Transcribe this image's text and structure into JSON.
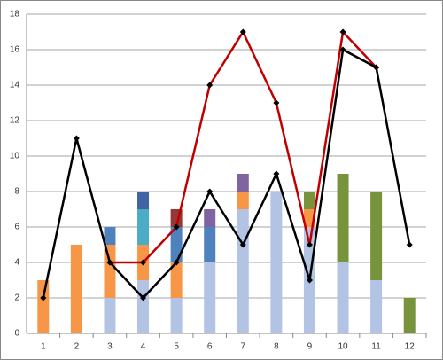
{
  "chart_data": {
    "type": "bar",
    "stacked": true,
    "categories": [
      "1",
      "2",
      "3",
      "4",
      "5",
      "6",
      "7",
      "8",
      "9",
      "10",
      "11",
      "12"
    ],
    "series": [
      {
        "type": "bar",
        "color": "#b3c3e3",
        "values": [
          null,
          null,
          2,
          3,
          2,
          4,
          7,
          8,
          6,
          4,
          3,
          null
        ]
      },
      {
        "type": "bar",
        "color": "#f79646",
        "values": [
          3,
          5,
          3,
          2,
          2,
          null,
          1,
          null,
          1,
          null,
          null,
          null
        ]
      },
      {
        "type": "bar",
        "color": "#4f81bd",
        "values": [
          null,
          null,
          1,
          null,
          2,
          2,
          null,
          null,
          null,
          null,
          null,
          null
        ]
      },
      {
        "type": "bar",
        "color": "#4bacc6",
        "values": [
          null,
          null,
          null,
          2,
          null,
          null,
          null,
          null,
          null,
          null,
          null,
          null
        ]
      },
      {
        "type": "bar",
        "color": "#3f63a3",
        "values": [
          null,
          null,
          null,
          1,
          null,
          null,
          null,
          null,
          null,
          null,
          null,
          null
        ]
      },
      {
        "type": "bar",
        "color": "#953735",
        "values": [
          null,
          null,
          null,
          null,
          1,
          null,
          null,
          null,
          null,
          null,
          null,
          null
        ]
      },
      {
        "type": "bar",
        "color": "#8064a2",
        "values": [
          null,
          null,
          null,
          null,
          null,
          1,
          1,
          null,
          null,
          null,
          null,
          null
        ]
      },
      {
        "type": "bar",
        "color": "#77933c",
        "values": [
          null,
          null,
          null,
          null,
          null,
          null,
          null,
          null,
          1,
          5,
          5,
          2
        ]
      },
      {
        "type": "line",
        "color": "#c00000",
        "values": [
          null,
          null,
          4,
          4,
          6,
          14,
          17,
          13,
          5,
          17,
          15,
          null
        ]
      },
      {
        "type": "line",
        "color": "#000000",
        "values": [
          2,
          11,
          4,
          2,
          4,
          8,
          5,
          9,
          3,
          16,
          15,
          5
        ]
      }
    ],
    "ylim": [
      0,
      18
    ],
    "yticks": [
      0,
      2,
      4,
      6,
      8,
      10,
      12,
      14,
      16,
      18
    ],
    "grid": true
  }
}
